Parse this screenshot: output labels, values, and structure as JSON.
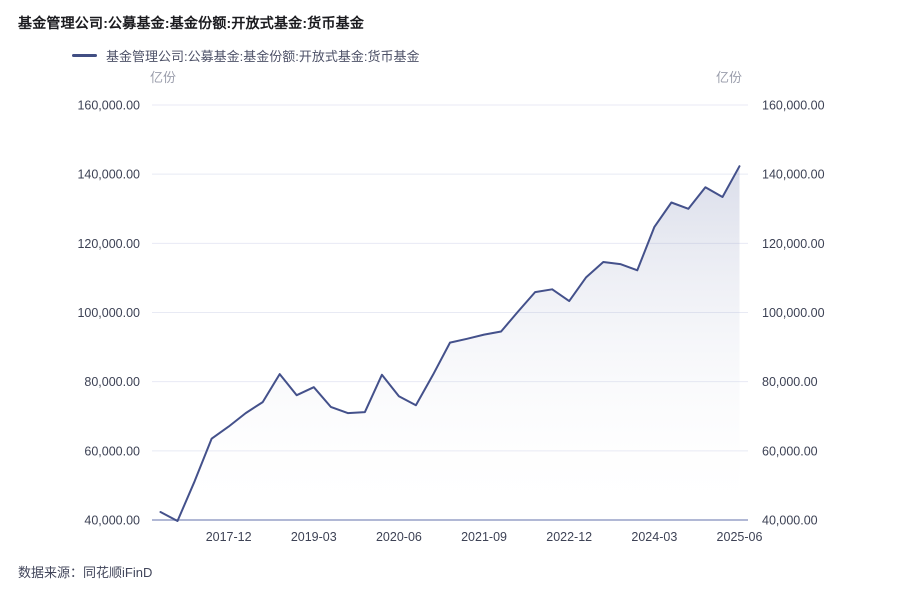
{
  "header": {
    "title": "基金管理公司:公募基金:基金份额:开放式基金:货币基金"
  },
  "legend": {
    "label": "基金管理公司:公募基金:基金份额:开放式基金:货币基金"
  },
  "axes": {
    "unit_left": "亿份",
    "unit_right": "亿份"
  },
  "footer": {
    "source": "数据来源：同花顺iFinD"
  },
  "colors": {
    "line": "#44518b",
    "area_top": "rgba(86,100,158,0.22)",
    "area_bottom": "rgba(255,255,255,0)",
    "grid": "#e8eaf4",
    "axis_line": "#a6aecf",
    "tick_text": "#3d4255",
    "title_text": "#1b1b1f",
    "legend_text": "#4d5167",
    "unit_text": "#9b9eac"
  },
  "chart_data": {
    "type": "area",
    "title": "基金管理公司:公募基金:基金份额:开放式基金:货币基金",
    "xlabel": "",
    "ylabel": "亿份",
    "legend_position": "top-left",
    "grid": true,
    "ylim": [
      40000,
      160000
    ],
    "y_ticks": [
      40000,
      60000,
      80000,
      100000,
      120000,
      140000,
      160000
    ],
    "x_tick_indices": [
      4,
      9,
      14,
      19,
      24,
      29,
      34
    ],
    "x_tick_labels": [
      "2017-12",
      "2019-03",
      "2020-06",
      "2021-09",
      "2022-12",
      "2024-03",
      "2025-06"
    ],
    "categories": [
      "2016-12",
      "2017-03",
      "2017-06",
      "2017-09",
      "2017-12",
      "2018-03",
      "2018-06",
      "2018-09",
      "2018-12",
      "2019-03",
      "2019-06",
      "2019-09",
      "2019-12",
      "2020-03",
      "2020-06",
      "2020-09",
      "2020-12",
      "2021-03",
      "2021-06",
      "2021-09",
      "2021-12",
      "2022-03",
      "2022-06",
      "2022-09",
      "2022-12",
      "2023-03",
      "2023-06",
      "2023-09",
      "2023-12",
      "2024-03",
      "2024-06",
      "2024-09",
      "2024-12",
      "2025-03",
      "2025-06"
    ],
    "series": [
      {
        "name": "基金管理公司:公募基金:基金份额:开放式基金:货币基金",
        "values": [
          42300,
          39700,
          51200,
          63500,
          67000,
          70900,
          74100,
          82200,
          76100,
          78400,
          72700,
          70900,
          71200,
          82000,
          75800,
          73200,
          82000,
          91300,
          92400,
          93600,
          94500,
          100300,
          105900,
          106700,
          103300,
          110200,
          114600,
          114000,
          112200,
          124700,
          131800,
          130000,
          136200,
          133400,
          142300
        ]
      }
    ]
  }
}
